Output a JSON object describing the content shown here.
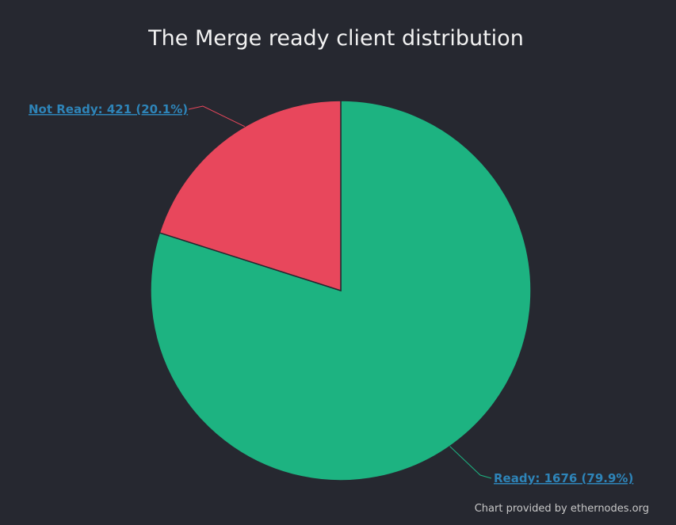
{
  "chart_data": {
    "type": "pie",
    "title": "The Merge ready client distribution",
    "slices": [
      {
        "name": "Ready",
        "value": 1676,
        "percent": 79.9,
        "label": "Ready: 1676 (79.9%)",
        "color": "#1db381",
        "label_color": "#2e84b8"
      },
      {
        "name": "Not Ready",
        "value": 421,
        "percent": 20.1,
        "label": "Not Ready: 421 (20.1%)",
        "color": "#e8475c",
        "label_color": "#2e84b8"
      }
    ],
    "start_angle": "12 o'clock",
    "direction": "clockwise"
  },
  "credit": "Chart provided by ethernodes.org",
  "colors": {
    "background": "#262830",
    "title": "#f2f2f2",
    "slice_border": "#262830"
  }
}
